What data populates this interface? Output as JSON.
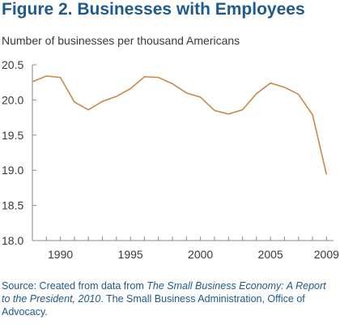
{
  "figure": {
    "title": "Figure 2. Businesses with Employees",
    "y_caption": "Number of businesses per thousand Americans"
  },
  "source": {
    "prefix": "Source: Created from data from ",
    "publication": "The Small Business Economy: A Report to the President, 2010",
    "suffix": ". The Small Business Administration, Office of Advocacy."
  },
  "colors": {
    "line": "#c8894a",
    "axis": "#8a8a8a",
    "title": "#1f5a8c",
    "text": "#3a3a3a"
  },
  "chart_data": {
    "type": "line",
    "title": "Figure 2. Businesses with Employees",
    "xlabel": "",
    "ylabel": "Number of businesses per thousand Americans",
    "xlim": [
      1988,
      2009.5
    ],
    "ylim": [
      18.0,
      20.5
    ],
    "x_ticks": [
      1990,
      1995,
      2000,
      2005,
      2009
    ],
    "y_ticks": [
      18.0,
      18.5,
      19.0,
      19.5,
      20.0,
      20.5
    ],
    "y_tick_labels": [
      "18.0",
      "18.5",
      "19.0",
      "19.5",
      "20.0",
      "20.5"
    ],
    "grid": false,
    "series": [
      {
        "x": [
          1988,
          1989,
          1990,
          1991,
          1992,
          1993,
          1994,
          1995,
          1996,
          1997,
          1998,
          1999,
          2000,
          2001,
          2002,
          2003,
          2004,
          2005,
          2006,
          2007,
          2008,
          2009
        ],
        "values": [
          20.26,
          20.34,
          20.32,
          19.97,
          19.86,
          19.98,
          20.05,
          20.16,
          20.33,
          20.32,
          20.23,
          20.1,
          20.04,
          19.85,
          19.8,
          19.86,
          20.09,
          20.24,
          20.18,
          20.08,
          19.79,
          18.94
        ]
      }
    ]
  }
}
